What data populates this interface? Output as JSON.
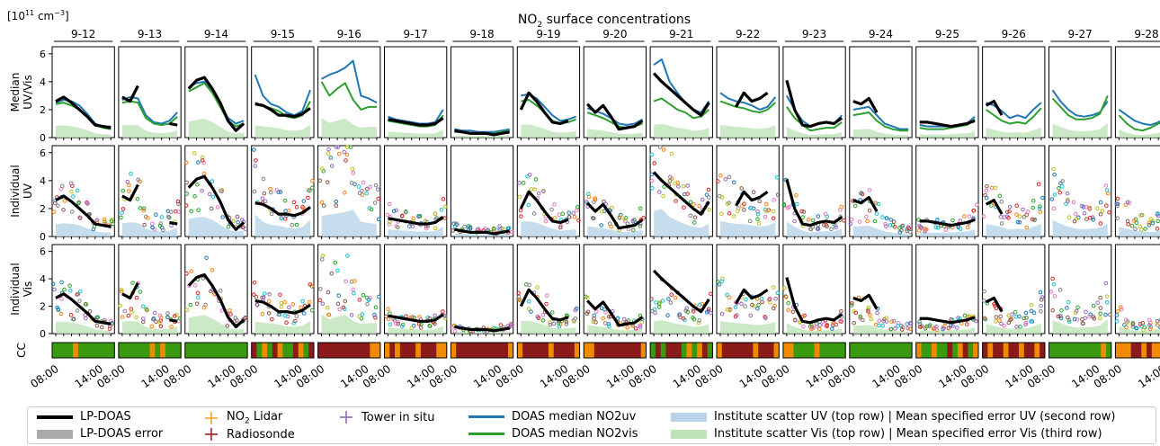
{
  "figure": {
    "title_main": "NO",
    "title_sub": "2",
    "title_rest": " surface concentrations",
    "unit_prefix": "[10",
    "unit_exp1": "11",
    "unit_mid": " cm",
    "unit_exp2": "−3",
    "unit_suffix": "]"
  },
  "colors": {
    "lp_doas": "#000000",
    "lp_doas_error": "#aaaaaa",
    "no2_lidar": "#f5a623",
    "radiosonde": "#a02020",
    "tower": "#9467bd",
    "doas_uv": "#1f77b4",
    "doas_vis": "#2ca02c",
    "scatter_uv": "#b8d4ea",
    "scatter_vis": "#bfe3b9",
    "cc_good": "#3a9a0f",
    "cc_mid": "#f08a00",
    "cc_bad": "#8b1a1a"
  },
  "legend": [
    {
      "key": "lp",
      "label": "LP-DOAS",
      "icon": "black-line"
    },
    {
      "key": "lperr",
      "label": "LP-DOAS error",
      "icon": "gray-band"
    },
    {
      "key": "lidar",
      "label_pre": "NO",
      "label_sub": "2",
      "label_post": " Lidar",
      "icon": "orange-errorbar"
    },
    {
      "key": "radio",
      "label": "Radiosonde",
      "icon": "red-errorbar"
    },
    {
      "key": "tower",
      "label": "Tower in situ",
      "icon": "purple-errorbar"
    },
    {
      "key": "uv",
      "label": "DOAS median NO2uv",
      "icon": "blue-line"
    },
    {
      "key": "vis",
      "label": "DOAS median NO2vis",
      "icon": "green-line"
    },
    {
      "key": "suv",
      "label": "Institute scatter UV (top row) | Mean specified error UV (second row)",
      "icon": "light-blue-band"
    },
    {
      "key": "svis",
      "label": "Institute scatter Vis (top row) | Mean specified error Vis (third row)",
      "icon": "light-green-band"
    }
  ],
  "chart_data": {
    "type": "line",
    "days": [
      "9-12",
      "9-13",
      "9-14",
      "9-15",
      "9-16",
      "9-17",
      "9-18",
      "9-19",
      "9-20",
      "9-21",
      "9-22",
      "9-23",
      "9-24",
      "9-25",
      "9-26",
      "9-27",
      "9-28"
    ],
    "rows": [
      {
        "ylabel": [
          "Median",
          "UV/Vis"
        ]
      },
      {
        "ylabel": [
          "Individual",
          "UV"
        ]
      },
      {
        "ylabel": [
          "Individual",
          "Vis"
        ]
      },
      {
        "ylabel": [
          "CC"
        ]
      }
    ],
    "ylim": [
      0,
      6.5
    ],
    "yticks": [
      0,
      2,
      4,
      6
    ],
    "x_ticklabels": [
      "08:00",
      "14:00"
    ],
    "lp_doas": [
      [
        2.6,
        2.9,
        2.5,
        2.0,
        1.5,
        0.9,
        0.8,
        0.7
      ],
      [
        2.9,
        2.6,
        3.7,
        null,
        0.7,
        null,
        1.0,
        0.9
      ],
      [
        3.5,
        4.1,
        4.3,
        3.5,
        2.5,
        1.2,
        0.5,
        1.0
      ],
      [
        2.4,
        2.3,
        2.0,
        1.6,
        1.6,
        1.5,
        1.7,
        2.1
      ],
      [
        null,
        null,
        null,
        null,
        null,
        null,
        null,
        null
      ],
      [
        1.3,
        1.2,
        1.1,
        1.0,
        0.9,
        0.9,
        1.0,
        1.4
      ],
      [
        0.5,
        0.4,
        0.3,
        0.3,
        0.3,
        0.2,
        0.3,
        0.4
      ],
      [
        2.0,
        3.2,
        2.6,
        1.8,
        1.1,
        1.0,
        1.2,
        null
      ],
      [
        2.4,
        1.8,
        2.3,
        1.5,
        0.6,
        0.7,
        0.8,
        1.2
      ],
      [
        4.6,
        4.0,
        3.5,
        3.0,
        2.5,
        2.0,
        1.6,
        2.5
      ],
      [
        null,
        null,
        2.2,
        3.2,
        2.6,
        2.8,
        3.2,
        null
      ],
      [
        4.1,
        2.0,
        0.9,
        0.8,
        1.0,
        1.1,
        1.0,
        1.4
      ],
      [
        2.6,
        2.4,
        2.8,
        1.8,
        null,
        null,
        null,
        null
      ],
      [
        1.1,
        1.1,
        1.0,
        0.9,
        0.8,
        0.9,
        1.0,
        1.2
      ],
      [
        2.3,
        2.6,
        1.6,
        null,
        null,
        null,
        null,
        null
      ],
      [
        null,
        null,
        null,
        null,
        null,
        null,
        null,
        null
      ],
      [
        null,
        null,
        null,
        null,
        null,
        null,
        null,
        null
      ]
    ],
    "doas_uv": [
      [
        2.5,
        2.7,
        2.6,
        2.3,
        1.7,
        1.0,
        0.8,
        0.8
      ],
      [
        2.7,
        2.9,
        2.8,
        1.6,
        1.1,
        1.0,
        1.2,
        1.8
      ],
      [
        3.6,
        3.9,
        4.0,
        3.4,
        2.4,
        1.4,
        1.0,
        1.2
      ],
      [
        4.5,
        3.0,
        2.4,
        2.2,
        1.8,
        1.6,
        1.9,
        3.4
      ],
      [
        4.2,
        4.5,
        4.7,
        5.0,
        5.5,
        3.0,
        2.8,
        2.5
      ],
      [
        1.5,
        1.3,
        1.2,
        1.1,
        1.0,
        1.0,
        1.1,
        2.0
      ],
      [
        0.6,
        0.5,
        0.5,
        0.4,
        0.4,
        0.4,
        0.5,
        0.6
      ],
      [
        3.0,
        3.1,
        2.8,
        2.2,
        1.6,
        1.2,
        1.3,
        1.5
      ],
      [
        2.1,
        1.9,
        1.7,
        1.4,
        1.0,
        0.9,
        1.0,
        1.3
      ],
      [
        5.2,
        5.6,
        4.0,
        3.2,
        2.5,
        2.0,
        1.8,
        2.6
      ],
      [
        3.2,
        2.8,
        2.6,
        2.5,
        2.3,
        2.0,
        2.2,
        2.9
      ],
      [
        3.0,
        2.0,
        1.2,
        0.8,
        1.0,
        1.1,
        1.0,
        1.6
      ],
      [
        2.0,
        2.1,
        2.2,
        1.6,
        1.0,
        0.8,
        0.6,
        0.6
      ],
      [
        0.9,
        0.8,
        0.8,
        0.8,
        0.8,
        0.9,
        1.0,
        1.5
      ],
      [
        2.5,
        2.3,
        1.9,
        1.4,
        1.6,
        1.4,
        2.0,
        2.5
      ],
      [
        3.4,
        2.6,
        2.0,
        1.6,
        1.5,
        1.6,
        1.8,
        2.6
      ],
      [
        2.0,
        1.6,
        1.2,
        1.0,
        0.9,
        1.1,
        1.4,
        2.0
      ]
    ],
    "doas_vis": [
      [
        2.4,
        2.5,
        2.3,
        2.0,
        1.5,
        0.9,
        0.7,
        0.6
      ],
      [
        2.5,
        2.6,
        2.5,
        1.4,
        1.0,
        0.9,
        1.0,
        1.5
      ],
      [
        3.3,
        3.6,
        3.9,
        3.2,
        2.2,
        1.2,
        0.8,
        1.0
      ],
      [
        2.5,
        2.3,
        2.1,
        1.9,
        1.5,
        1.4,
        1.6,
        2.6
      ],
      [
        4.0,
        3.0,
        3.5,
        3.9,
        2.7,
        2.0,
        2.2,
        2.2
      ],
      [
        1.2,
        1.1,
        1.0,
        0.9,
        0.8,
        0.8,
        0.9,
        1.6
      ],
      [
        0.4,
        0.4,
        0.3,
        0.3,
        0.3,
        0.3,
        0.4,
        0.5
      ],
      [
        2.6,
        2.7,
        2.3,
        1.8,
        1.2,
        1.0,
        1.1,
        1.3
      ],
      [
        1.8,
        1.6,
        1.4,
        1.1,
        0.8,
        0.7,
        0.8,
        1.0
      ],
      [
        2.6,
        2.8,
        2.4,
        2.0,
        1.8,
        1.4,
        1.5,
        2.0
      ],
      [
        2.6,
        2.4,
        2.2,
        2.1,
        1.9,
        1.8,
        2.0,
        2.5
      ],
      [
        2.2,
        1.4,
        0.9,
        0.5,
        0.6,
        0.7,
        0.7,
        1.1
      ],
      [
        1.6,
        1.7,
        1.8,
        1.2,
        0.8,
        0.6,
        0.5,
        0.5
      ],
      [
        0.7,
        0.6,
        0.6,
        0.6,
        0.7,
        0.8,
        0.9,
        1.3
      ],
      [
        2.0,
        1.6,
        1.2,
        1.0,
        1.1,
        1.0,
        1.5,
        2.1
      ],
      [
        2.8,
        2.2,
        1.6,
        1.3,
        1.3,
        1.4,
        1.7,
        3.0
      ],
      [
        1.6,
        1.0,
        0.6,
        0.5,
        0.7,
        1.0,
        1.2,
        1.4
      ]
    ],
    "cc": [
      [
        "g",
        "g",
        "g",
        "g",
        "o",
        "g",
        "g",
        "g",
        "g",
        "g",
        "g",
        "g"
      ],
      [
        "g",
        "g",
        "g",
        "g",
        "g",
        "g",
        "o",
        "g",
        "o",
        "g",
        "g",
        "g"
      ],
      [
        "g",
        "g",
        "g",
        "g",
        "g",
        "g",
        "g",
        "g",
        "g",
        "g",
        "g",
        "g"
      ],
      [
        "r",
        "g",
        "o",
        "g",
        "r",
        "o",
        "g",
        "g",
        "r",
        "o",
        "g",
        "r"
      ],
      [
        "r",
        "r",
        "r",
        "r",
        "r",
        "r",
        "r",
        "r",
        "r",
        "r",
        "o",
        "o"
      ],
      [
        "o",
        "r",
        "o",
        "r",
        "r",
        "r",
        "o",
        "r",
        "r",
        "r",
        "o",
        "o"
      ],
      [
        "o",
        "r",
        "r",
        "r",
        "r",
        "r",
        "r",
        "r",
        "r",
        "r",
        "r",
        "o"
      ],
      [
        "o",
        "r",
        "r",
        "r",
        "r",
        "r",
        "o",
        "r",
        "r",
        "r",
        "r",
        "o"
      ],
      [
        "o",
        "o",
        "r",
        "r",
        "r",
        "r",
        "r",
        "r",
        "r",
        "r",
        "r",
        "o"
      ],
      [
        "g",
        "r",
        "g",
        "r",
        "r",
        "r",
        "g",
        "o",
        "g",
        "o",
        "r",
        "g"
      ],
      [
        "o",
        "r",
        "r",
        "r",
        "r",
        "r",
        "r",
        "o",
        "r",
        "r",
        "r",
        "o"
      ],
      [
        "o",
        "o",
        "g",
        "g",
        "g",
        "g",
        "o",
        "g",
        "g",
        "g",
        "g",
        "g"
      ],
      [
        "g",
        "g",
        "g",
        "g",
        "g",
        "g",
        "g",
        "g",
        "g",
        "g",
        "g",
        "g"
      ],
      [
        "o",
        "g",
        "g",
        "o",
        "g",
        "g",
        "r",
        "g",
        "o",
        "r",
        "g",
        "o"
      ],
      [
        "r",
        "o",
        "r",
        "r",
        "o",
        "r",
        "r",
        "o",
        "r",
        "r",
        "o",
        "r"
      ],
      [
        "g",
        "g",
        "g",
        "g",
        "g",
        "g",
        "g",
        "g",
        "g",
        "g",
        "o",
        "g"
      ],
      [
        "o",
        "o",
        "o",
        "r",
        "r",
        "o",
        "r",
        "o",
        "o",
        "o",
        "o",
        "o"
      ]
    ]
  }
}
